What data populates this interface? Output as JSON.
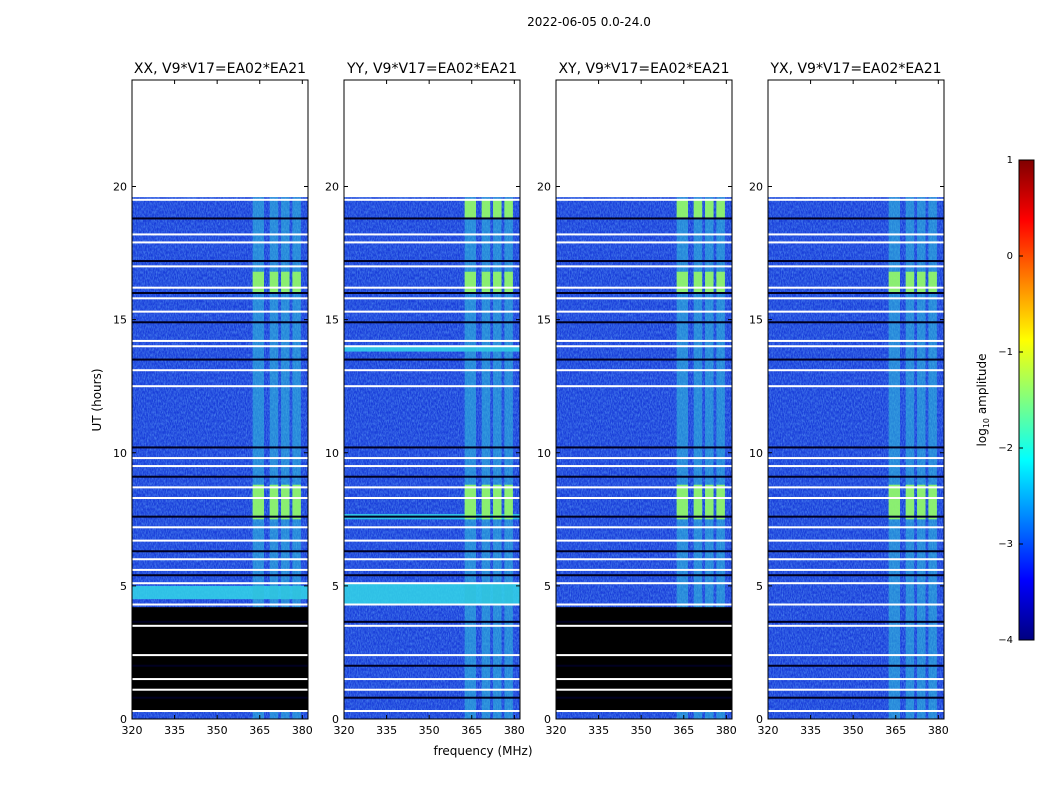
{
  "figure_title": "2022-06-05 0.0-24.0",
  "chart_data": {
    "type": "heatmap",
    "suptitle": "2022-06-05 0.0-24.0",
    "xlabel": "frequency (MHz)",
    "ylabel": "UT (hours)",
    "xlim": [
      320,
      382
    ],
    "ylim": [
      0,
      24
    ],
    "xticks": [
      320,
      335,
      350,
      365,
      380
    ],
    "yticks": [
      0,
      5,
      10,
      15,
      20
    ],
    "colormap": "jet",
    "colorbar": {
      "label_prefix": "log",
      "label_sub": "10",
      "label_suffix": " amplitude",
      "range": [
        -4,
        1
      ],
      "ticks": [
        "1",
        "0",
        "−1",
        "−2",
        "−3",
        "−4"
      ],
      "colors": [
        "#000080",
        "#0000ff",
        "#0080ff",
        "#00ffff",
        "#80ff80",
        "#ffff00",
        "#ff8000",
        "#ff0000",
        "#800000"
      ]
    },
    "data_end_hours": 19.6,
    "rfi_band_mhz": [
      [
        362.5,
        366.5
      ],
      [
        368.5,
        371.5
      ],
      [
        372.5,
        375.5
      ],
      [
        376.5,
        379.5
      ]
    ],
    "flagged_rows_hours": [
      0.3,
      0.8,
      1.1,
      1.5,
      2.0,
      2.4,
      3.5,
      3.65,
      4.3,
      5.1,
      5.4,
      5.6,
      6.0,
      6.3,
      6.7,
      7.2,
      7.6,
      8.3,
      8.7,
      9.1,
      9.5,
      9.8,
      10.2,
      12.5,
      13.1,
      13.5,
      14.0,
      14.2,
      14.9,
      15.3,
      15.8,
      16.0,
      16.2,
      17.0,
      17.2,
      17.9,
      18.2,
      18.8,
      19.5
    ],
    "panels": [
      {
        "title": "XX, V9*V17=EA02*EA21",
        "blank_ranges_hours": [
          [
            0.3,
            4.2
          ]
        ],
        "bright_bands_hours": [
          [
            16.0,
            16.8
          ],
          [
            7.5,
            8.8
          ]
        ],
        "broadband_bright_hours": [
          [
            4.5,
            5.0
          ]
        ]
      },
      {
        "title": "YY, V9*V17=EA02*EA21",
        "blank_ranges_hours": [],
        "bright_bands_hours": [
          [
            16.0,
            16.8
          ],
          [
            7.5,
            8.8
          ],
          [
            18.8,
            19.5
          ]
        ],
        "broadband_bright_hours": [
          [
            4.3,
            5.1
          ],
          [
            7.5,
            7.7
          ],
          [
            13.8,
            14.0
          ]
        ]
      },
      {
        "title": "XY, V9*V17=EA02*EA21",
        "blank_ranges_hours": [
          [
            0.3,
            4.2
          ]
        ],
        "bright_bands_hours": [
          [
            16.0,
            16.8
          ],
          [
            7.5,
            8.8
          ],
          [
            18.8,
            19.5
          ]
        ],
        "broadband_bright_hours": []
      },
      {
        "title": "YX, V9*V17=EA02*EA21",
        "blank_ranges_hours": [],
        "bright_bands_hours": [
          [
            16.0,
            16.8
          ],
          [
            7.5,
            8.8
          ]
        ],
        "broadband_bright_hours": []
      }
    ]
  }
}
